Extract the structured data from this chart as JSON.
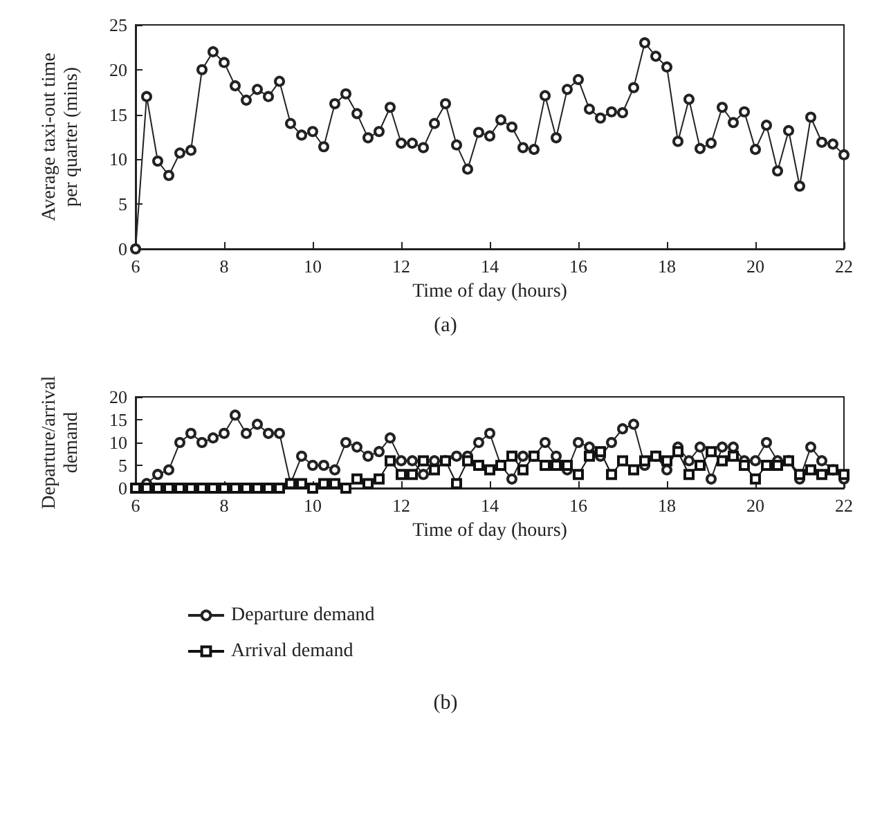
{
  "chart_data": [
    {
      "type": "line",
      "xlabel": "Time of day (hours)",
      "ylabel": "Average taxi-out time per quarter (mins)",
      "annotations": [
        "(a)"
      ],
      "x": [
        6,
        6.25,
        6.5,
        6.75,
        7,
        7.25,
        7.5,
        7.75,
        8,
        8.25,
        8.5,
        8.75,
        9,
        9.25,
        9.5,
        9.75,
        10,
        10.25,
        10.5,
        10.75,
        11,
        11.25,
        11.5,
        11.75,
        12,
        12.25,
        12.5,
        12.75,
        13,
        13.25,
        13.5,
        13.75,
        14,
        14.25,
        14.5,
        14.75,
        15,
        15.25,
        15.5,
        15.75,
        16,
        16.25,
        16.5,
        16.75,
        17,
        17.25,
        17.5,
        17.75,
        18,
        18.25,
        18.5,
        18.75,
        19,
        19.25,
        19.5,
        19.75,
        20,
        20.25,
        20.5,
        20.75,
        21,
        21.25,
        21.5,
        21.75,
        22
      ],
      "series": [
        {
          "color": "#222222",
          "marker": "circle",
          "values": [
            0,
            17,
            9.8,
            8.2,
            10.7,
            11,
            20,
            22,
            20.8,
            18.2,
            16.6,
            17.8,
            17,
            18.7,
            14,
            12.7,
            13.1,
            11.4,
            16.2,
            17.3,
            15.1,
            12.4,
            13.1,
            15.8,
            11.8,
            11.8,
            11.3,
            14,
            16.2,
            11.6,
            8.9,
            13,
            12.6,
            14.4,
            13.6,
            11.3,
            11.1,
            17.1,
            12.4,
            17.8,
            18.9,
            15.6,
            14.6,
            15.3,
            15.2,
            18,
            23,
            21.5,
            20.3,
            12,
            16.7,
            11.2,
            11.8,
            15.8,
            14.1,
            15.3,
            11.1,
            13.8,
            8.7,
            13.2,
            7,
            14.7,
            11.9,
            11.7,
            10.5
          ]
        }
      ],
      "xlim": [
        6,
        22
      ],
      "xticks": [
        6,
        8,
        10,
        12,
        14,
        16,
        18,
        20,
        22
      ],
      "ylim": [
        0,
        25
      ],
      "yticks": [
        0,
        5,
        10,
        15,
        20,
        25
      ],
      "grid": false,
      "legend": false,
      "line_style": "solid"
    },
    {
      "type": "line",
      "xlabel": "Time of day (hours)",
      "ylabel": "Departure/arrival demand",
      "annotations": [
        "(b)"
      ],
      "x": [
        6,
        6.25,
        6.5,
        6.75,
        7,
        7.25,
        7.5,
        7.75,
        8,
        8.25,
        8.5,
        8.75,
        9,
        9.25,
        9.5,
        9.75,
        10,
        10.25,
        10.5,
        10.75,
        11,
        11.25,
        11.5,
        11.75,
        12,
        12.25,
        12.5,
        12.75,
        13,
        13.25,
        13.5,
        13.75,
        14,
        14.25,
        14.5,
        14.75,
        15,
        15.25,
        15.5,
        15.75,
        16,
        16.25,
        16.5,
        16.75,
        17,
        17.25,
        17.5,
        17.75,
        18,
        18.25,
        18.5,
        18.75,
        19,
        19.25,
        19.5,
        19.75,
        20,
        20.25,
        20.5,
        20.75,
        21,
        21.25,
        21.5,
        21.75,
        22
      ],
      "series": [
        {
          "name": "Departure demand",
          "color": "#222222",
          "marker": "circle",
          "values": [
            0,
            1,
            3,
            4,
            10,
            12,
            10,
            11,
            12,
            16,
            12,
            14,
            12,
            12,
            1,
            7,
            5,
            5,
            4,
            10,
            9,
            7,
            8,
            11,
            6,
            6,
            3,
            6,
            6,
            7,
            7,
            10,
            12,
            5,
            2,
            7,
            7,
            10,
            7,
            4,
            10,
            9,
            7,
            10,
            13,
            14,
            5,
            7,
            4,
            9,
            6,
            9,
            2,
            9,
            9,
            6,
            6,
            10,
            6,
            6,
            2,
            9,
            6,
            4,
            2
          ]
        },
        {
          "name": "Arrival demand",
          "color": "#111111",
          "marker": "square",
          "values": [
            0,
            0,
            0,
            0,
            0,
            0,
            0,
            0,
            0,
            0,
            0,
            0,
            0,
            0,
            1,
            1,
            0,
            1,
            1,
            0,
            2,
            1,
            2,
            6,
            3,
            3,
            6,
            4,
            6,
            1,
            6,
            5,
            4,
            5,
            7,
            4,
            7,
            5,
            5,
            5,
            3,
            7,
            8,
            3,
            6,
            4,
            6,
            7,
            6,
            8,
            3,
            5,
            8,
            6,
            7,
            5,
            2,
            5,
            5,
            6,
            3,
            4,
            3,
            4,
            3
          ]
        }
      ],
      "xlim": [
        6,
        22
      ],
      "xticks": [
        6,
        8,
        10,
        12,
        14,
        16,
        18,
        20,
        22
      ],
      "ylim": [
        0,
        20
      ],
      "yticks": [
        0,
        5,
        10,
        15,
        20
      ],
      "grid": false,
      "legend": "bottom left",
      "line_style": "solid"
    }
  ]
}
